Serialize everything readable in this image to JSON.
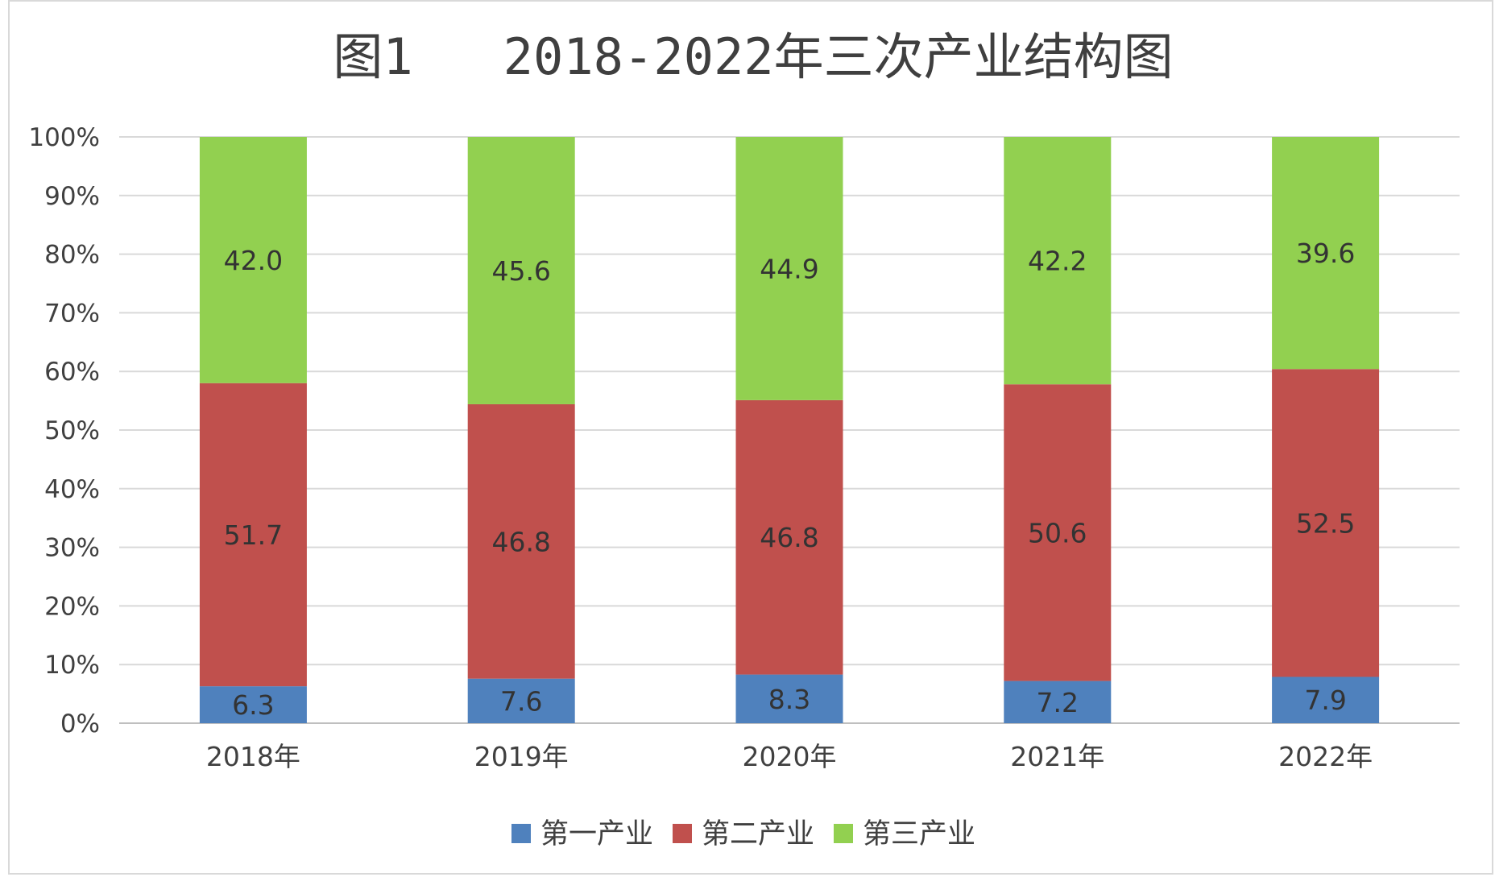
{
  "chart_data": {
    "type": "bar",
    "stacked": "percent",
    "title": "图1   2018-2022年三次产业结构图",
    "categories": [
      "2018年",
      "2019年",
      "2020年",
      "2021年",
      "2022年"
    ],
    "series": [
      {
        "name": "第一产业",
        "color": "#4f81bd",
        "values": [
          6.3,
          7.6,
          8.3,
          7.2,
          7.9
        ]
      },
      {
        "name": "第二产业",
        "color": "#c0504d",
        "values": [
          51.7,
          46.8,
          46.8,
          50.6,
          52.5
        ]
      },
      {
        "name": "第三产业",
        "color": "#92d050",
        "values": [
          42.0,
          45.6,
          44.9,
          42.2,
          39.6
        ]
      }
    ],
    "value_labels": [
      [
        "6.3",
        "7.6",
        "8.3",
        "7.2",
        "7.9"
      ],
      [
        "51.7",
        "46.8",
        "46.8",
        "50.6",
        "52.5"
      ],
      [
        "42.0",
        "45.6",
        "44.9",
        "42.2",
        "39.6"
      ]
    ],
    "y_ticks": [
      "0%",
      "10%",
      "20%",
      "30%",
      "40%",
      "50%",
      "60%",
      "70%",
      "80%",
      "90%",
      "100%"
    ],
    "ylim": [
      0,
      100
    ],
    "grid": true,
    "legend_position": "bottom"
  }
}
